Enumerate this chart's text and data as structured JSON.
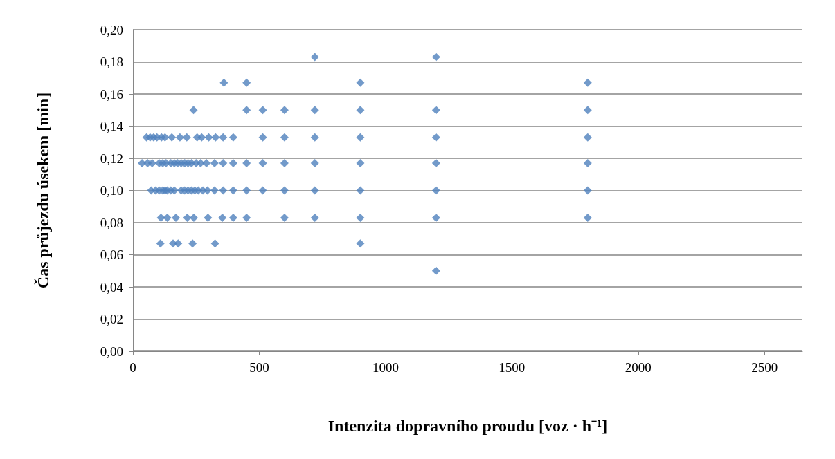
{
  "chart_data": {
    "type": "scatter",
    "xlabel": "Intenzita dopravního proudu [voz · h⁻¹]",
    "ylabel": "Čas průjezdu úsekem [min]",
    "x": [
      240,
      450,
      514,
      600,
      720,
      900,
      1200,
      1800,
      360,
      450,
      900,
      1800,
      720,
      1200,
      54,
      68,
      82,
      95,
      113,
      127,
      154,
      186,
      213,
      254,
      272,
      300,
      327,
      357,
      397,
      514,
      600,
      720,
      900,
      1200,
      1800,
      36,
      58,
      76,
      104,
      118,
      131,
      150,
      164,
      177,
      191,
      205,
      218,
      232,
      250,
      268,
      291,
      323,
      357,
      397,
      450,
      514,
      600,
      720,
      900,
      1200,
      1800,
      72,
      90,
      104,
      118,
      127,
      136,
      150,
      164,
      191,
      205,
      218,
      232,
      245,
      259,
      277,
      295,
      323,
      357,
      397,
      450,
      514,
      600,
      720,
      900,
      1200,
      1800,
      111,
      136,
      170,
      215,
      241,
      297,
      354,
      397,
      450,
      600,
      720,
      900,
      1200,
      1800,
      109,
      159,
      179,
      236,
      325,
      900,
      1200
    ],
    "values": [
      0.15,
      0.15,
      0.15,
      0.15,
      0.15,
      0.15,
      0.15,
      0.15,
      0.167,
      0.167,
      0.167,
      0.167,
      0.183,
      0.183,
      0.133,
      0.133,
      0.133,
      0.133,
      0.133,
      0.133,
      0.133,
      0.133,
      0.133,
      0.133,
      0.133,
      0.133,
      0.133,
      0.133,
      0.133,
      0.133,
      0.133,
      0.133,
      0.133,
      0.133,
      0.133,
      0.117,
      0.117,
      0.117,
      0.117,
      0.117,
      0.117,
      0.117,
      0.117,
      0.117,
      0.117,
      0.117,
      0.117,
      0.117,
      0.117,
      0.117,
      0.117,
      0.117,
      0.117,
      0.117,
      0.117,
      0.117,
      0.117,
      0.117,
      0.117,
      0.117,
      0.117,
      0.1,
      0.1,
      0.1,
      0.1,
      0.1,
      0.1,
      0.1,
      0.1,
      0.1,
      0.1,
      0.1,
      0.1,
      0.1,
      0.1,
      0.1,
      0.1,
      0.1,
      0.1,
      0.1,
      0.1,
      0.1,
      0.1,
      0.1,
      0.1,
      0.1,
      0.1,
      0.083,
      0.083,
      0.083,
      0.083,
      0.083,
      0.083,
      0.083,
      0.083,
      0.083,
      0.083,
      0.083,
      0.083,
      0.083,
      0.083,
      0.067,
      0.067,
      0.067,
      0.067,
      0.067,
      0.067,
      0.05
    ],
    "color": "#4f81bd",
    "marker": "diamond",
    "grid": "y",
    "xlim": [
      0,
      2650
    ],
    "xticks": [
      0,
      500,
      1000,
      1500,
      2000,
      2500
    ],
    "ylim": [
      0,
      0.2
    ],
    "yticks": [
      {
        "value": 0,
        "label": "0,00"
      },
      {
        "value": 0.02,
        "label": "0,02"
      },
      {
        "value": 0.04,
        "label": "0,04"
      },
      {
        "value": 0.06,
        "label": "0,06"
      },
      {
        "value": 0.08,
        "label": "0,08"
      },
      {
        "value": 0.1,
        "label": "0,10"
      },
      {
        "value": 0.12,
        "label": "0,12"
      },
      {
        "value": 0.14,
        "label": "0,14"
      },
      {
        "value": 0.16,
        "label": "0,16"
      },
      {
        "value": 0.18,
        "label": "0,18"
      },
      {
        "value": 0.2,
        "label": "0,20"
      }
    ]
  }
}
